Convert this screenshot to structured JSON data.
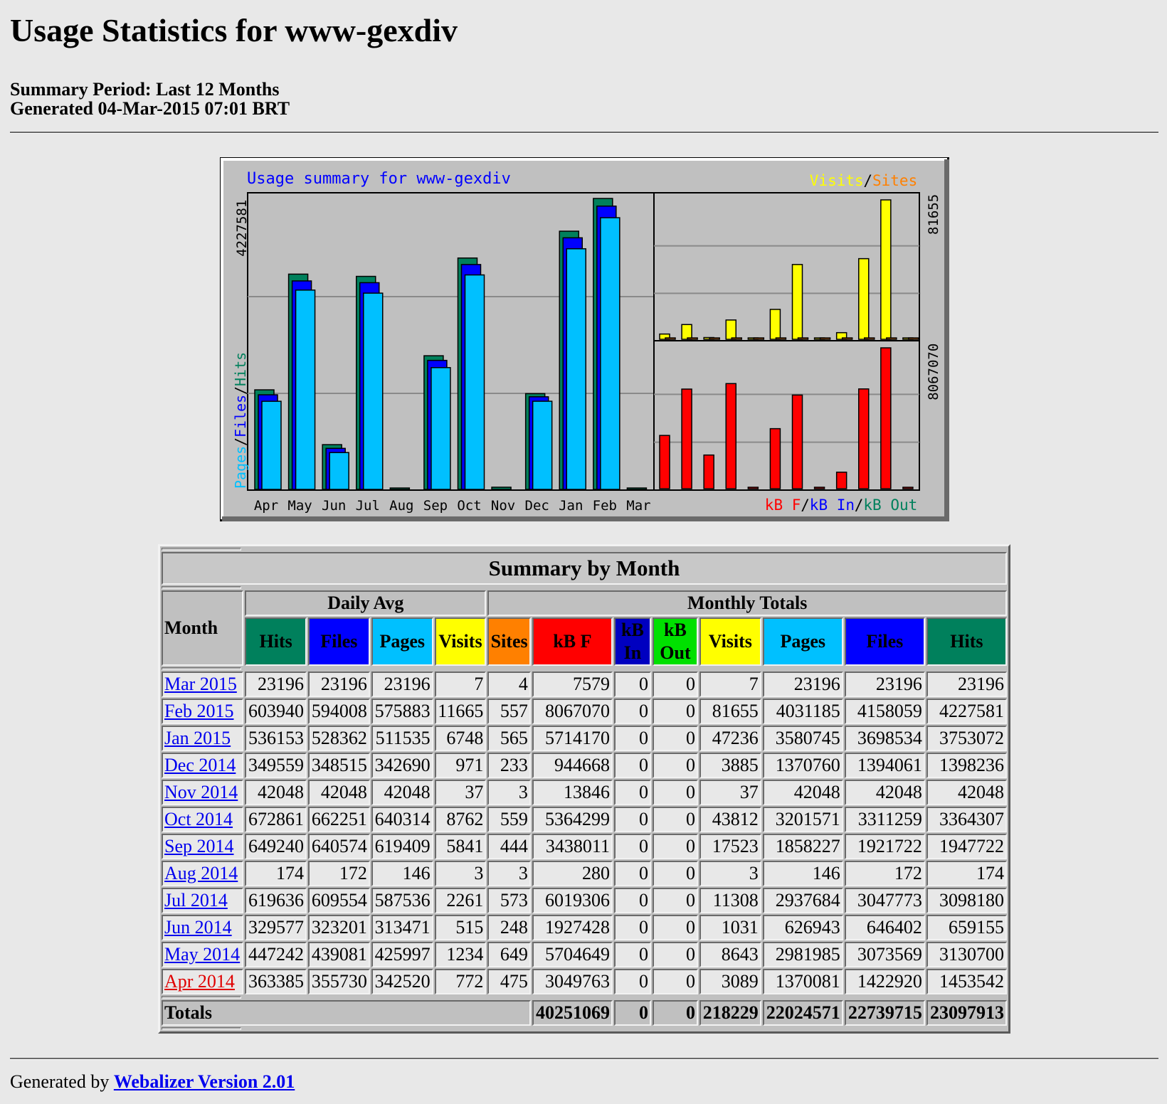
{
  "page": {
    "title": "Usage Statistics for www-gexdiv",
    "period": "Summary Period: Last 12 Months",
    "generated": "Generated 04-Mar-2015 07:01 BRT"
  },
  "chart_data": {
    "type": "bar",
    "title": "Usage summary for www-gexdiv",
    "categories": [
      "Apr",
      "May",
      "Jun",
      "Jul",
      "Aug",
      "Sep",
      "Oct",
      "Nov",
      "Dec",
      "Jan",
      "Feb",
      "Mar"
    ],
    "left_panel": {
      "max_label": "4227581",
      "axis_label_parts": [
        {
          "text": "Pages",
          "color": "#00c0ff"
        },
        {
          "text": "/",
          "color": "#000000"
        },
        {
          "text": "Files",
          "color": "#0000ff"
        },
        {
          "text": "/",
          "color": "#000000"
        },
        {
          "text": "Hits",
          "color": "#00805c"
        }
      ],
      "ymax": 4227581,
      "series": [
        {
          "key": "hits",
          "color": "#00805c",
          "values": [
            1453542,
            3130700,
            659155,
            3098180,
            174,
            1947722,
            3364307,
            42048,
            1398236,
            3753072,
            4227581,
            23196
          ]
        },
        {
          "key": "files",
          "color": "#0000ff",
          "values": [
            1422920,
            3073569,
            646402,
            3047773,
            172,
            1921722,
            3311259,
            42048,
            1394061,
            3698534,
            4158059,
            23196
          ]
        },
        {
          "key": "pages",
          "color": "#00c0ff",
          "values": [
            1370081,
            2981985,
            626943,
            2937684,
            146,
            1858227,
            3201571,
            42048,
            1370760,
            3580745,
            4031185,
            23196
          ]
        }
      ]
    },
    "top_right_panel": {
      "max_label": "81655",
      "legend_parts": [
        {
          "text": "Visits",
          "color": "#ffff00"
        },
        {
          "text": "/",
          "color": "#000000"
        },
        {
          "text": "Sites",
          "color": "#ff8000"
        }
      ],
      "ymax": 81655,
      "series": [
        {
          "key": "visits",
          "color": "#ffff00",
          "values": [
            3089,
            8643,
            1031,
            11308,
            3,
            17523,
            43812,
            37,
            3885,
            47236,
            81655,
            7
          ]
        },
        {
          "key": "sites",
          "color": "#ff8000",
          "values": [
            475,
            649,
            248,
            573,
            3,
            444,
            559,
            3,
            233,
            565,
            557,
            4
          ]
        }
      ]
    },
    "bottom_right_panel": {
      "max_label": "8067070",
      "legend_parts": [
        {
          "text": "kB F",
          "color": "#ff0000"
        },
        {
          "text": "/",
          "color": "#000000"
        },
        {
          "text": "kB In",
          "color": "#0000ff"
        },
        {
          "text": "/",
          "color": "#000000"
        },
        {
          "text": "kB Out",
          "color": "#00805c"
        }
      ],
      "ymax": 8067070,
      "series": [
        {
          "key": "kbf",
          "color": "#ff0000",
          "values": [
            3049763,
            5704649,
            1927428,
            6019306,
            280,
            3438011,
            5364299,
            13846,
            944668,
            5714170,
            8067070,
            7579
          ]
        }
      ]
    }
  },
  "table": {
    "title": "Summary by Month",
    "month_header": "Month",
    "daily_avg_header": "Daily Avg",
    "monthly_totals_header": "Monthly Totals",
    "headers": {
      "hits": "Hits",
      "files": "Files",
      "pages": "Pages",
      "visits": "Visits",
      "sites": "Sites",
      "kbf": "kB F",
      "kbin": "kB In",
      "kbout": "kB Out",
      "mvisits": "Visits",
      "mpages": "Pages",
      "mfiles": "Files",
      "mhits": "Hits"
    },
    "rows": [
      {
        "month": "Mar 2015",
        "d_hits": "23196",
        "d_files": "23196",
        "d_pages": "23196",
        "d_visits": "7",
        "sites": "4",
        "kbf": "7579",
        "kbin": "0",
        "kbout": "0",
        "m_visits": "7",
        "m_pages": "23196",
        "m_files": "23196",
        "m_hits": "23196",
        "current": false
      },
      {
        "month": "Feb 2015",
        "d_hits": "603940",
        "d_files": "594008",
        "d_pages": "575883",
        "d_visits": "11665",
        "sites": "557",
        "kbf": "8067070",
        "kbin": "0",
        "kbout": "0",
        "m_visits": "81655",
        "m_pages": "4031185",
        "m_files": "4158059",
        "m_hits": "4227581",
        "current": false
      },
      {
        "month": "Jan 2015",
        "d_hits": "536153",
        "d_files": "528362",
        "d_pages": "511535",
        "d_visits": "6748",
        "sites": "565",
        "kbf": "5714170",
        "kbin": "0",
        "kbout": "0",
        "m_visits": "47236",
        "m_pages": "3580745",
        "m_files": "3698534",
        "m_hits": "3753072",
        "current": false
      },
      {
        "month": "Dec 2014",
        "d_hits": "349559",
        "d_files": "348515",
        "d_pages": "342690",
        "d_visits": "971",
        "sites": "233",
        "kbf": "944668",
        "kbin": "0",
        "kbout": "0",
        "m_visits": "3885",
        "m_pages": "1370760",
        "m_files": "1394061",
        "m_hits": "1398236",
        "current": false
      },
      {
        "month": "Nov 2014",
        "d_hits": "42048",
        "d_files": "42048",
        "d_pages": "42048",
        "d_visits": "37",
        "sites": "3",
        "kbf": "13846",
        "kbin": "0",
        "kbout": "0",
        "m_visits": "37",
        "m_pages": "42048",
        "m_files": "42048",
        "m_hits": "42048",
        "current": false
      },
      {
        "month": "Oct 2014",
        "d_hits": "672861",
        "d_files": "662251",
        "d_pages": "640314",
        "d_visits": "8762",
        "sites": "559",
        "kbf": "5364299",
        "kbin": "0",
        "kbout": "0",
        "m_visits": "43812",
        "m_pages": "3201571",
        "m_files": "3311259",
        "m_hits": "3364307",
        "current": false
      },
      {
        "month": "Sep 2014",
        "d_hits": "649240",
        "d_files": "640574",
        "d_pages": "619409",
        "d_visits": "5841",
        "sites": "444",
        "kbf": "3438011",
        "kbin": "0",
        "kbout": "0",
        "m_visits": "17523",
        "m_pages": "1858227",
        "m_files": "1921722",
        "m_hits": "1947722",
        "current": false
      },
      {
        "month": "Aug 2014",
        "d_hits": "174",
        "d_files": "172",
        "d_pages": "146",
        "d_visits": "3",
        "sites": "3",
        "kbf": "280",
        "kbin": "0",
        "kbout": "0",
        "m_visits": "3",
        "m_pages": "146",
        "m_files": "172",
        "m_hits": "174",
        "current": false
      },
      {
        "month": "Jul 2014",
        "d_hits": "619636",
        "d_files": "609554",
        "d_pages": "587536",
        "d_visits": "2261",
        "sites": "573",
        "kbf": "6019306",
        "kbin": "0",
        "kbout": "0",
        "m_visits": "11308",
        "m_pages": "2937684",
        "m_files": "3047773",
        "m_hits": "3098180",
        "current": false
      },
      {
        "month": "Jun 2014",
        "d_hits": "329577",
        "d_files": "323201",
        "d_pages": "313471",
        "d_visits": "515",
        "sites": "248",
        "kbf": "1927428",
        "kbin": "0",
        "kbout": "0",
        "m_visits": "1031",
        "m_pages": "626943",
        "m_files": "646402",
        "m_hits": "659155",
        "current": false
      },
      {
        "month": "May 2014",
        "d_hits": "447242",
        "d_files": "439081",
        "d_pages": "425997",
        "d_visits": "1234",
        "sites": "649",
        "kbf": "5704649",
        "kbin": "0",
        "kbout": "0",
        "m_visits": "8643",
        "m_pages": "2981985",
        "m_files": "3073569",
        "m_hits": "3130700",
        "current": false
      },
      {
        "month": "Apr 2014",
        "d_hits": "363385",
        "d_files": "355730",
        "d_pages": "342520",
        "d_visits": "772",
        "sites": "475",
        "kbf": "3049763",
        "kbin": "0",
        "kbout": "0",
        "m_visits": "3089",
        "m_pages": "1370081",
        "m_files": "1422920",
        "m_hits": "1453542",
        "current": true
      }
    ],
    "totals": {
      "label": "Totals",
      "kbf": "40251069",
      "kbin": "0",
      "kbout": "0",
      "visits": "218229",
      "pages": "22024571",
      "files": "22739715",
      "hits": "23097913"
    }
  },
  "footer": {
    "prefix": "Generated by ",
    "link_text": "Webalizer Version 2.01"
  }
}
